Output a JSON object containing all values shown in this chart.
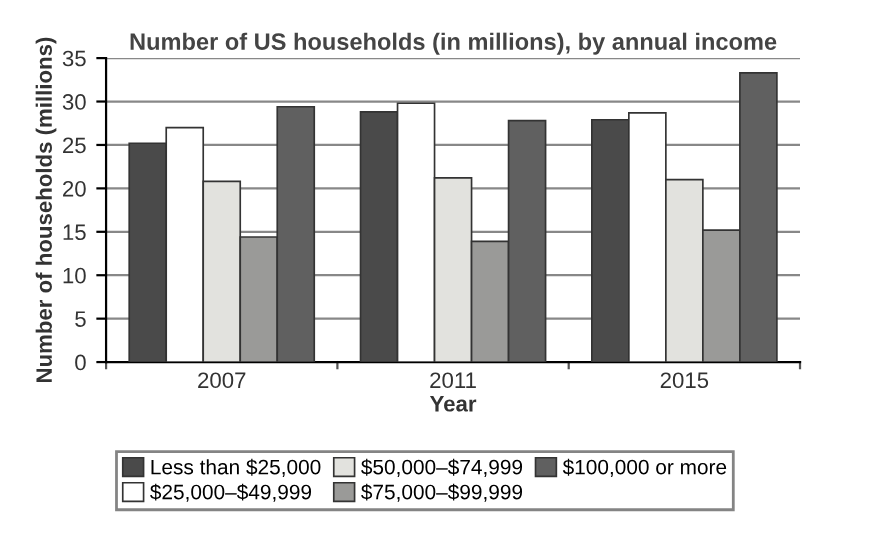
{
  "chart_data": {
    "type": "bar",
    "title": "Number of US households (in millions), by annual income",
    "xlabel": "Year",
    "ylabel": "Number of households (millions)",
    "categories": [
      "2007",
      "2011",
      "2015"
    ],
    "series": [
      {
        "name": "Less than $25,000",
        "color": "#4a4a4a",
        "values": [
          25.2,
          28.8,
          27.9
        ]
      },
      {
        "name": "$25,000–$49,999",
        "color": "#ffffff",
        "values": [
          27.0,
          29.8,
          28.7
        ]
      },
      {
        "name": "$50,000–$74,999",
        "color": "#e2e2de",
        "values": [
          20.8,
          21.2,
          21.0
        ]
      },
      {
        "name": "$75,000–$99,999",
        "color": "#9a9a98",
        "values": [
          14.4,
          13.9,
          15.2
        ]
      },
      {
        "name": "$100,000 or more",
        "color": "#606060",
        "values": [
          29.4,
          27.8,
          33.3
        ]
      }
    ],
    "ylim": [
      0,
      35
    ],
    "yticks": [
      0,
      5,
      10,
      15,
      20,
      25,
      30,
      35
    ],
    "grid": "y",
    "legend": "bottom"
  }
}
